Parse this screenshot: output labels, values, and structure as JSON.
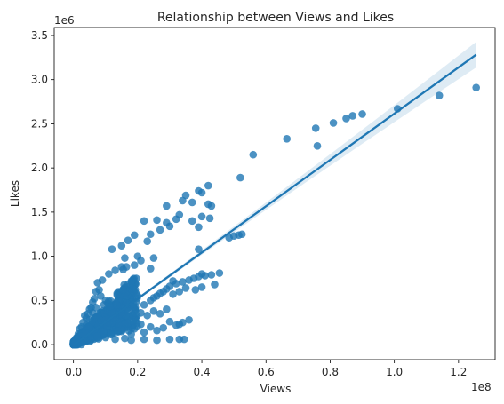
{
  "chart_data": {
    "type": "scatter",
    "title": "Relationship between Views and Likes",
    "xlabel": "Views",
    "ylabel": "Likes",
    "x_offset_label": "1e8",
    "y_offset_label": "1e6",
    "xlim": [
      -0.06,
      1.314
    ],
    "ylim": [
      -0.17,
      3.59
    ],
    "x_ticks": [
      0.0,
      0.2,
      0.4,
      0.6,
      0.8,
      1.0,
      1.2
    ],
    "x_tick_labels": [
      "0.0",
      "0.2",
      "0.4",
      "0.6",
      "0.8",
      "1.0",
      "1.2"
    ],
    "y_ticks": [
      0.0,
      0.5,
      1.0,
      1.5,
      2.0,
      2.5,
      3.0,
      3.5
    ],
    "y_tick_labels": [
      "0.0",
      "0.5",
      "1.0",
      "1.5",
      "2.0",
      "2.5",
      "3.0",
      "3.5"
    ],
    "grid": false,
    "colors": {
      "points": "#1f77b4",
      "line": "#1f77b4",
      "band": "#1f77b4"
    },
    "points": [
      [
        1.255,
        2.91
      ],
      [
        1.14,
        2.82
      ],
      [
        1.01,
        2.67
      ],
      [
        0.9,
        2.61
      ],
      [
        0.87,
        2.59
      ],
      [
        0.85,
        2.56
      ],
      [
        0.81,
        2.51
      ],
      [
        0.76,
        2.25
      ],
      [
        0.755,
        2.45
      ],
      [
        0.665,
        2.33
      ],
      [
        0.56,
        2.15
      ],
      [
        0.52,
        1.89
      ],
      [
        0.42,
        1.8
      ],
      [
        0.4,
        1.72
      ],
      [
        0.39,
        1.74
      ],
      [
        0.37,
        1.61
      ],
      [
        0.35,
        1.69
      ],
      [
        0.34,
        1.63
      ],
      [
        0.33,
        1.47
      ],
      [
        0.43,
        1.57
      ],
      [
        0.425,
        1.43
      ],
      [
        0.42,
        1.59
      ],
      [
        0.4,
        1.45
      ],
      [
        0.39,
        1.33
      ],
      [
        0.37,
        1.4
      ],
      [
        0.32,
        1.42
      ],
      [
        0.26,
        1.41
      ],
      [
        0.22,
        1.4
      ],
      [
        0.29,
        1.57
      ],
      [
        0.29,
        1.38
      ],
      [
        0.3,
        1.34
      ],
      [
        0.525,
        1.25
      ],
      [
        0.515,
        1.24
      ],
      [
        0.5,
        1.23
      ],
      [
        0.485,
        1.21
      ],
      [
        0.27,
        1.3
      ],
      [
        0.24,
        1.25
      ],
      [
        0.23,
        1.17
      ],
      [
        0.19,
        1.24
      ],
      [
        0.17,
        1.18
      ],
      [
        0.12,
        1.08
      ],
      [
        0.39,
        1.08
      ],
      [
        0.25,
        0.98
      ],
      [
        0.2,
        1.0
      ],
      [
        0.16,
        0.98
      ],
      [
        0.15,
        1.12
      ],
      [
        0.21,
        0.95
      ],
      [
        0.19,
        0.9
      ],
      [
        0.165,
        0.88
      ],
      [
        0.15,
        0.88
      ],
      [
        0.24,
        0.86
      ],
      [
        0.155,
        0.85
      ],
      [
        0.13,
        0.84
      ],
      [
        0.11,
        0.8
      ],
      [
        0.09,
        0.73
      ],
      [
        0.455,
        0.81
      ],
      [
        0.43,
        0.79
      ],
      [
        0.41,
        0.78
      ],
      [
        0.4,
        0.8
      ],
      [
        0.39,
        0.77
      ],
      [
        0.375,
        0.75
      ],
      [
        0.36,
        0.73
      ],
      [
        0.34,
        0.71
      ],
      [
        0.32,
        0.69
      ],
      [
        0.31,
        0.72
      ],
      [
        0.3,
        0.66
      ],
      [
        0.29,
        0.63
      ],
      [
        0.28,
        0.6
      ],
      [
        0.27,
        0.58
      ],
      [
        0.26,
        0.55
      ],
      [
        0.25,
        0.53
      ],
      [
        0.24,
        0.5
      ],
      [
        0.44,
        0.68
      ],
      [
        0.4,
        0.65
      ],
      [
        0.38,
        0.62
      ],
      [
        0.35,
        0.64
      ],
      [
        0.33,
        0.6
      ],
      [
        0.31,
        0.57
      ],
      [
        0.22,
        0.45
      ],
      [
        0.2,
        0.55
      ],
      [
        0.18,
        0.5
      ],
      [
        0.17,
        0.42
      ],
      [
        0.16,
        0.6
      ],
      [
        0.14,
        0.52
      ],
      [
        0.13,
        0.45
      ],
      [
        0.12,
        0.4
      ],
      [
        0.11,
        0.38
      ],
      [
        0.1,
        0.5
      ],
      [
        0.095,
        0.45
      ],
      [
        0.085,
        0.55
      ],
      [
        0.08,
        0.62
      ],
      [
        0.075,
        0.7
      ],
      [
        0.07,
        0.6
      ],
      [
        0.065,
        0.52
      ],
      [
        0.06,
        0.48
      ],
      [
        0.055,
        0.42
      ],
      [
        0.05,
        0.4
      ],
      [
        0.045,
        0.35
      ],
      [
        0.04,
        0.3
      ],
      [
        0.035,
        0.33
      ],
      [
        0.03,
        0.25
      ],
      [
        0.025,
        0.2
      ],
      [
        0.02,
        0.18
      ],
      [
        0.015,
        0.12
      ],
      [
        0.01,
        0.08
      ],
      [
        0.005,
        0.04
      ],
      [
        0.0,
        0.01
      ],
      [
        0.002,
        0.02
      ],
      [
        0.36,
        0.28
      ],
      [
        0.34,
        0.25
      ],
      [
        0.32,
        0.22
      ],
      [
        0.3,
        0.26
      ],
      [
        0.28,
        0.19
      ],
      [
        0.26,
        0.16
      ],
      [
        0.24,
        0.2
      ],
      [
        0.22,
        0.14
      ],
      [
        0.21,
        0.23
      ],
      [
        0.19,
        0.18
      ],
      [
        0.18,
        0.12
      ],
      [
        0.17,
        0.3
      ],
      [
        0.16,
        0.24
      ],
      [
        0.15,
        0.15
      ],
      [
        0.14,
        0.33
      ],
      [
        0.13,
        0.2
      ],
      [
        0.12,
        0.26
      ],
      [
        0.11,
        0.14
      ],
      [
        0.1,
        0.3
      ],
      [
        0.09,
        0.22
      ],
      [
        0.08,
        0.32
      ],
      [
        0.07,
        0.18
      ],
      [
        0.06,
        0.24
      ],
      [
        0.05,
        0.15
      ],
      [
        0.345,
        0.06
      ],
      [
        0.33,
        0.06
      ],
      [
        0.3,
        0.06
      ],
      [
        0.26,
        0.05
      ],
      [
        0.22,
        0.06
      ],
      [
        0.18,
        0.05
      ],
      [
        0.16,
        0.07
      ],
      [
        0.13,
        0.06
      ],
      [
        0.1,
        0.08
      ],
      [
        0.33,
        0.23
      ],
      [
        0.29,
        0.4
      ],
      [
        0.27,
        0.35
      ],
      [
        0.25,
        0.38
      ],
      [
        0.23,
        0.33
      ],
      [
        0.21,
        0.36
      ],
      [
        0.19,
        0.3
      ],
      [
        0.17,
        0.36
      ],
      [
        0.15,
        0.4
      ],
      [
        0.14,
        0.44
      ],
      [
        0.12,
        0.35
      ],
      [
        0.11,
        0.28
      ],
      [
        0.09,
        0.38
      ],
      [
        0.07,
        0.42
      ],
      [
        0.06,
        0.36
      ],
      [
        0.05,
        0.28
      ],
      [
        0.04,
        0.22
      ],
      [
        0.03,
        0.15
      ],
      [
        0.02,
        0.1
      ],
      [
        0.01,
        0.05
      ]
    ],
    "regression": {
      "slope": 2.62,
      "intercept": -0.005,
      "x_range": [
        0.0,
        1.255
      ]
    }
  }
}
